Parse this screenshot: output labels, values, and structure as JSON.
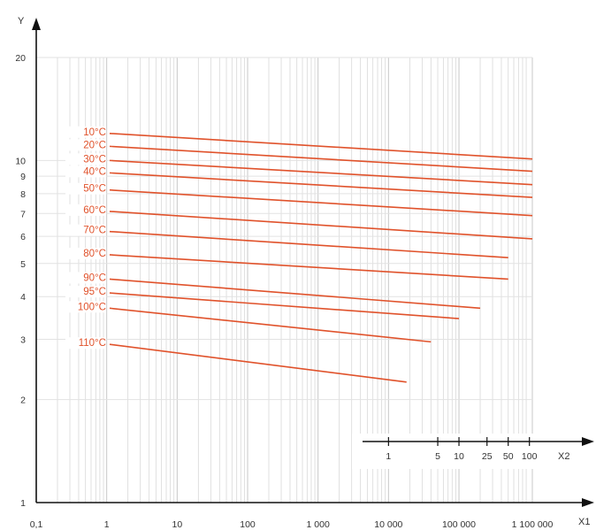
{
  "chart_data": {
    "type": "line",
    "title": "",
    "xlabel": "X1",
    "ylabel": "Y",
    "x2label": "X2",
    "x_scale": "log",
    "y_scale": "log",
    "xlim": [
      0.1,
      1100000
    ],
    "ylim": [
      1,
      20
    ],
    "x_ticks": [
      {
        "value": 0.1,
        "label": "0,1"
      },
      {
        "value": 1,
        "label": "1"
      },
      {
        "value": 10,
        "label": "10"
      },
      {
        "value": 100,
        "label": "100"
      },
      {
        "value": 1000,
        "label": "1 000"
      },
      {
        "value": 10000,
        "label": "10 000"
      },
      {
        "value": 100000,
        "label": "100 000"
      },
      {
        "value": 1100000,
        "label": "1 100 000"
      }
    ],
    "y_ticks": [
      {
        "value": 1,
        "label": "1"
      },
      {
        "value": 2,
        "label": "2"
      },
      {
        "value": 3,
        "label": "3"
      },
      {
        "value": 4,
        "label": "4"
      },
      {
        "value": 5,
        "label": "5"
      },
      {
        "value": 6,
        "label": "6"
      },
      {
        "value": 7,
        "label": "7"
      },
      {
        "value": 8,
        "label": "8"
      },
      {
        "value": 9,
        "label": "9"
      },
      {
        "value": 10,
        "label": "10"
      },
      {
        "value": 20,
        "label": "20"
      }
    ],
    "x2_ticks": [
      {
        "value": 1,
        "label": "1"
      },
      {
        "value": 5,
        "label": "5"
      },
      {
        "value": 10,
        "label": "10"
      },
      {
        "value": 25,
        "label": "25"
      },
      {
        "value": 50,
        "label": "50"
      },
      {
        "value": 100,
        "label": "100"
      }
    ],
    "grid": true,
    "line_color": "#e0522b",
    "grid_color": "#d8d8d8",
    "series": [
      {
        "name": "10°C",
        "x": [
          1.1,
          1100000
        ],
        "y": [
          12.0,
          10.1
        ]
      },
      {
        "name": "20°C",
        "x": [
          1.1,
          1100000
        ],
        "y": [
          11.0,
          9.3
        ]
      },
      {
        "name": "30°C",
        "x": [
          1.1,
          1100000
        ],
        "y": [
          10.0,
          8.5
        ]
      },
      {
        "name": "40°C",
        "x": [
          1.1,
          1100000
        ],
        "y": [
          9.2,
          7.8
        ]
      },
      {
        "name": "50°C",
        "x": [
          1.1,
          1100000
        ],
        "y": [
          8.2,
          6.9
        ]
      },
      {
        "name": "60°C",
        "x": [
          1.1,
          1100000
        ],
        "y": [
          7.1,
          5.9
        ]
      },
      {
        "name": "70°C",
        "x": [
          1.1,
          500000
        ],
        "y": [
          6.2,
          5.2
        ]
      },
      {
        "name": "80°C",
        "x": [
          1.1,
          500000
        ],
        "y": [
          5.3,
          4.5
        ]
      },
      {
        "name": "90°C",
        "x": [
          1.1,
          200000
        ],
        "y": [
          4.5,
          3.7
        ]
      },
      {
        "name": "95°C",
        "x": [
          1.1,
          100000
        ],
        "y": [
          4.1,
          3.45
        ]
      },
      {
        "name": "100°C",
        "x": [
          1.1,
          40000
        ],
        "y": [
          3.7,
          2.95
        ]
      },
      {
        "name": "110°C",
        "x": [
          1.1,
          18000
        ],
        "y": [
          2.9,
          2.25
        ]
      }
    ]
  }
}
